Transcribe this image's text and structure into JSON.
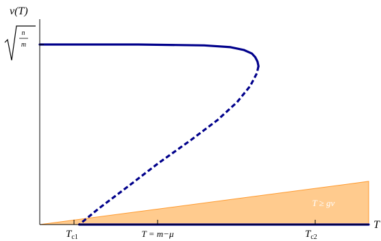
{
  "chart_data": {
    "type": "line",
    "title": "",
    "xlabel": "T",
    "ylabel": "v(T)",
    "y_top_label": {
      "num": "n",
      "den": "m"
    },
    "x_ticks": [
      {
        "label": "T",
        "sub": "c1"
      },
      {
        "label": "T = m−μ",
        "sub": ""
      },
      {
        "label": "T",
        "sub": "c2"
      }
    ],
    "region_label": "T ≥ gv",
    "series": [
      {
        "style": "solid",
        "description_free": true,
        "points": [
          [
            0,
            1.0
          ],
          [
            0.3,
            1.0
          ],
          [
            0.5,
            0.995
          ],
          [
            0.58,
            0.985
          ],
          [
            0.62,
            0.97
          ],
          [
            0.645,
            0.95
          ],
          [
            0.655,
            0.93
          ],
          [
            0.662,
            0.905
          ],
          [
            0.665,
            0.88
          ]
        ]
      },
      {
        "style": "dashed",
        "points": [
          [
            0.665,
            0.88
          ],
          [
            0.66,
            0.84
          ],
          [
            0.64,
            0.77
          ],
          [
            0.6,
            0.68
          ],
          [
            0.54,
            0.58
          ],
          [
            0.46,
            0.47
          ],
          [
            0.36,
            0.34
          ],
          [
            0.26,
            0.2
          ],
          [
            0.18,
            0.09
          ],
          [
            0.12,
            0.0
          ]
        ]
      },
      {
        "style": "solid",
        "points": [
          [
            0.12,
            0.0
          ],
          [
            1.0,
            0.0
          ]
        ]
      }
    ],
    "shaded_region": {
      "boundary": [
        [
          0,
          0
        ],
        [
          1.0,
          0.24
        ]
      ]
    }
  }
}
